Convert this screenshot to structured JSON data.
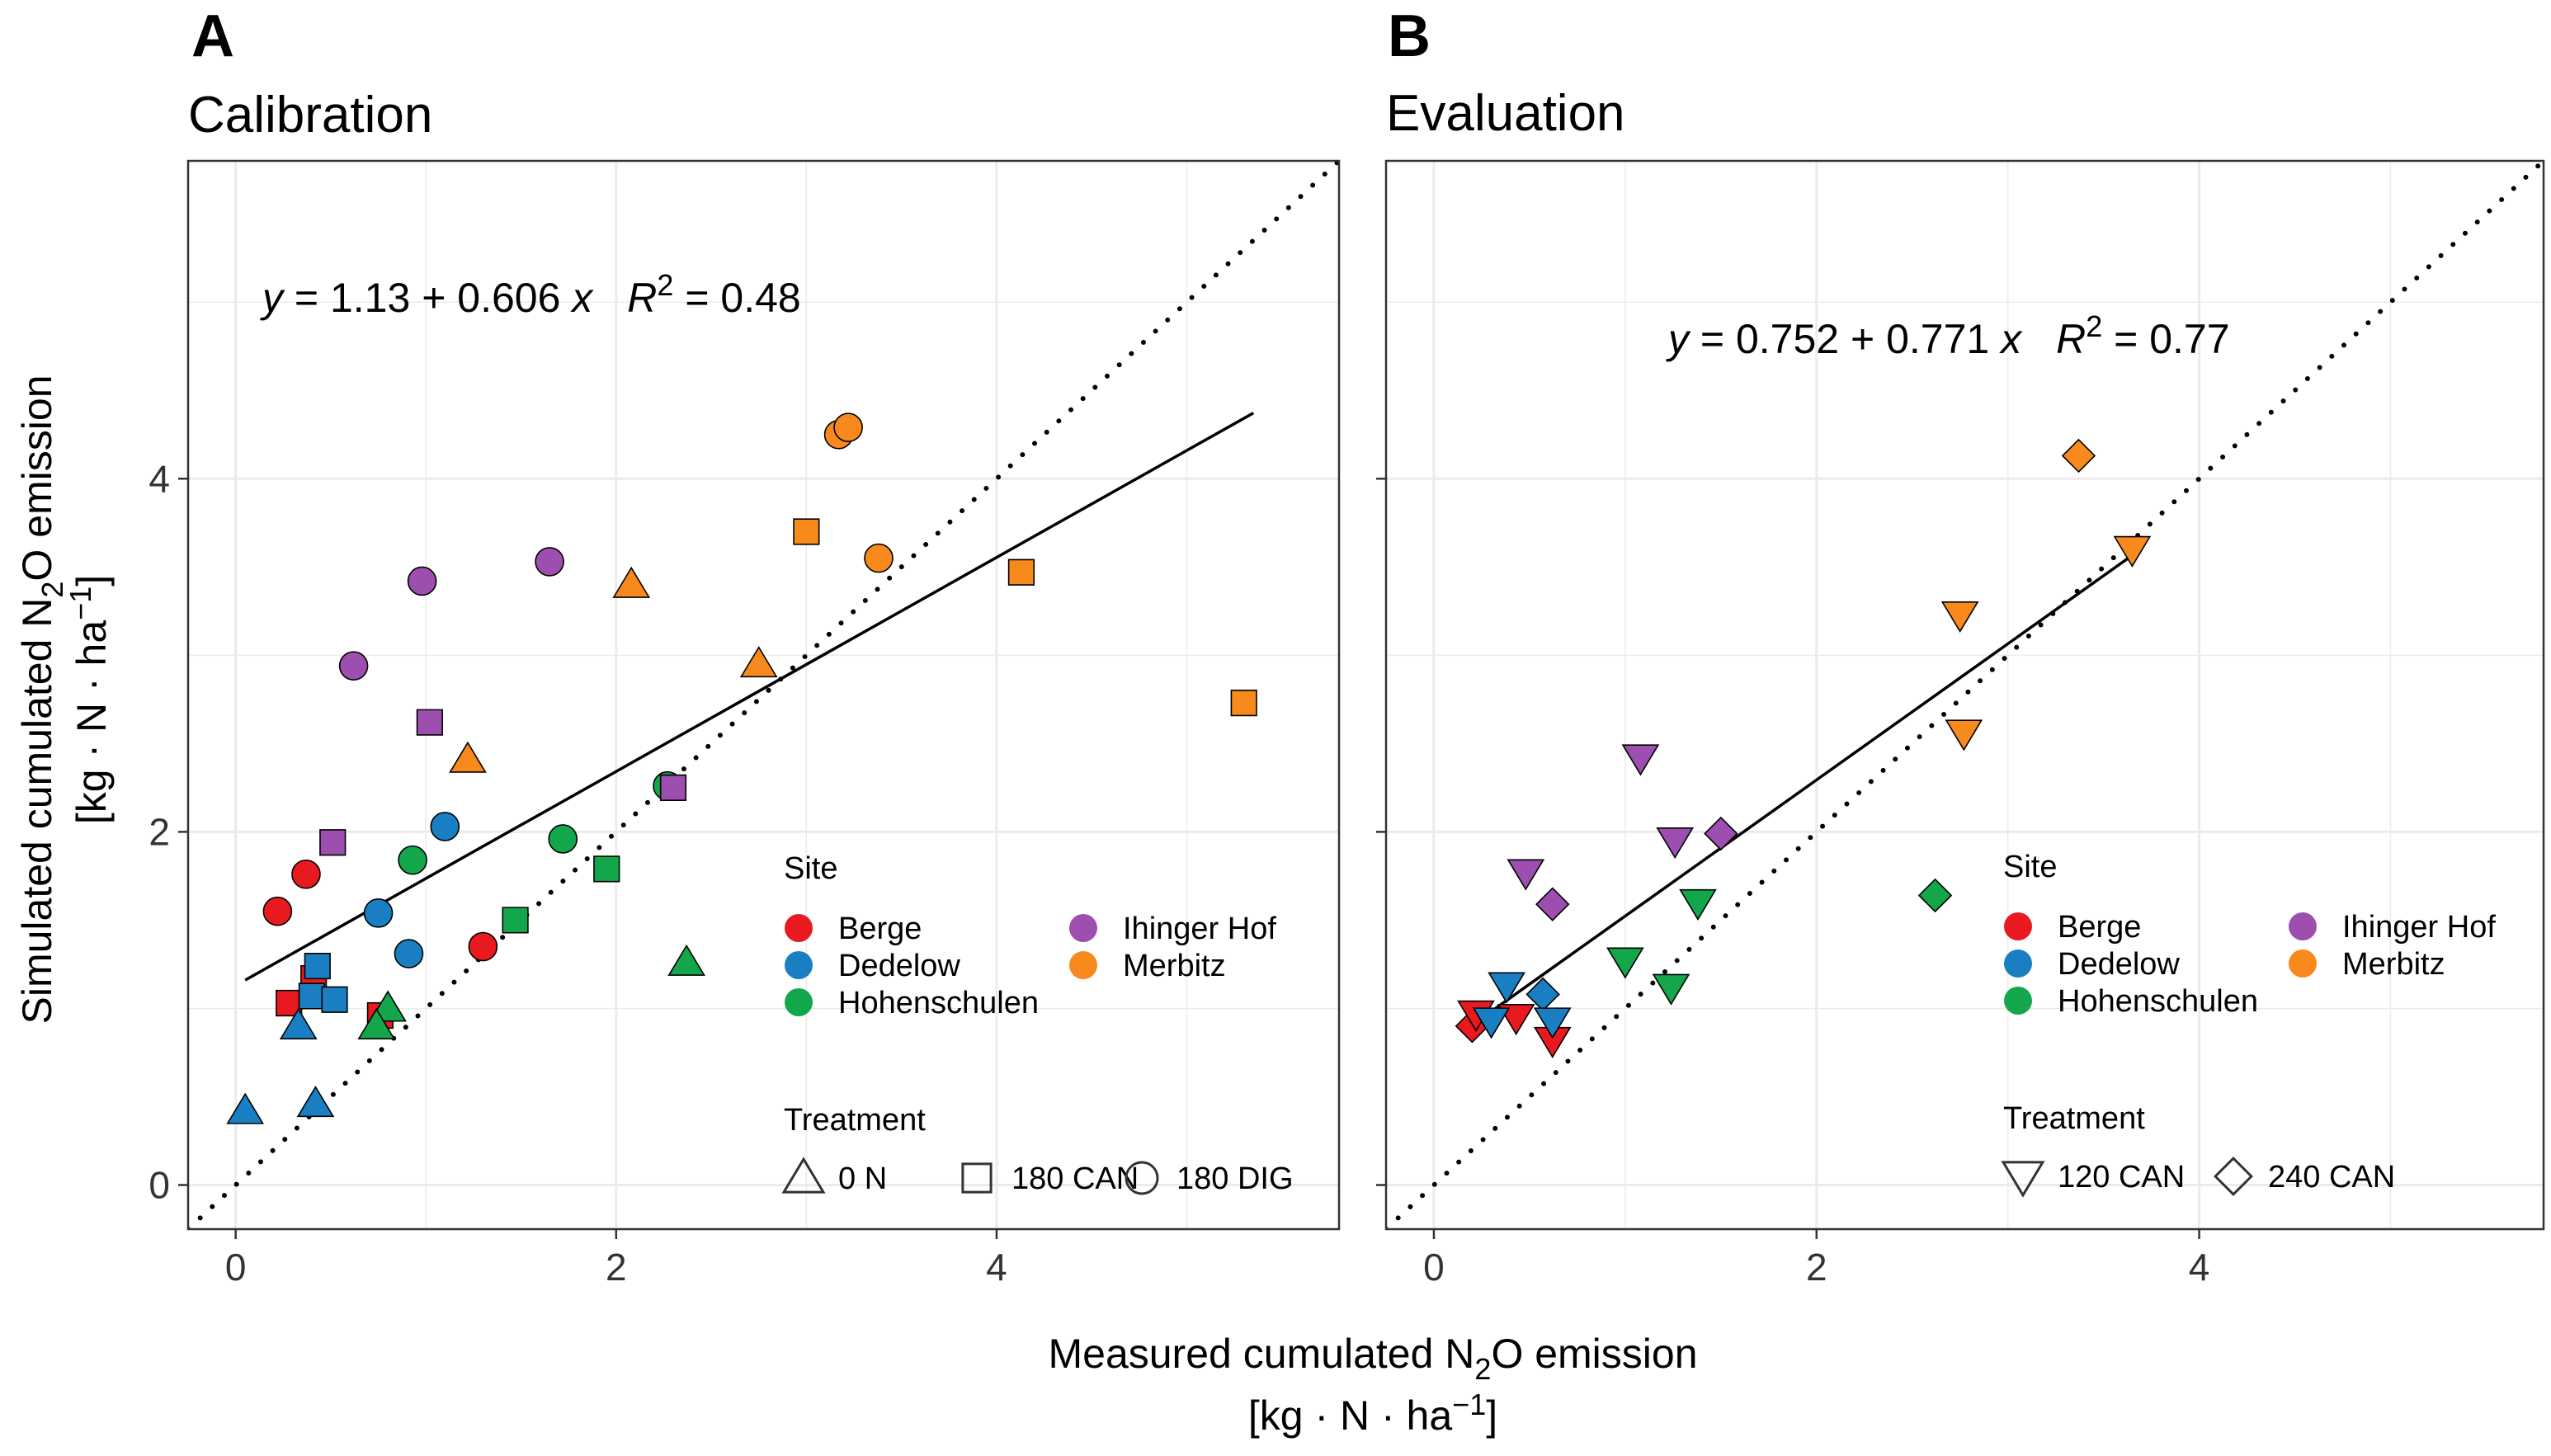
{
  "chart_data": [
    {
      "panel": "A",
      "title": "Calibration",
      "type": "scatter",
      "xlim": [
        -0.25,
        5.8
      ],
      "ylim": [
        -0.25,
        5.8
      ],
      "x_ticks": [
        0,
        2,
        4
      ],
      "y_ticks": [
        0,
        2,
        4
      ],
      "x_tick_labels": [
        "0",
        "2",
        "4"
      ],
      "y_tick_labels": [
        "0",
        "2",
        "4"
      ],
      "grid": true,
      "reference_line": "1:1 dotted",
      "regression": {
        "label_y": "y",
        "label_eq": "= 1.13 + 0.606",
        "label_x": "x",
        "label_r2_R": "R",
        "label_r2_sup": "2",
        "label_r2_val": "= 0.48",
        "intercept": 1.13,
        "slope": 0.606,
        "x_range": [
          0.05,
          5.35
        ]
      },
      "legend_site_title": "Site",
      "legend_treatment_title": "Treatment",
      "treatments": [
        {
          "shape": "triangle",
          "label": "0 N"
        },
        {
          "shape": "square",
          "label": "180 CAN"
        },
        {
          "shape": "circle",
          "label": "180 DIG"
        }
      ],
      "series": [
        {
          "site": "Berge",
          "points": [
            {
              "x": 0.22,
              "y": 1.55,
              "shape": "circle"
            },
            {
              "x": 0.37,
              "y": 1.76,
              "shape": "circle"
            },
            {
              "x": 1.3,
              "y": 1.35,
              "shape": "circle"
            },
            {
              "x": 0.28,
              "y": 1.03,
              "shape": "square"
            },
            {
              "x": 0.41,
              "y": 1.17,
              "shape": "square"
            },
            {
              "x": 0.76,
              "y": 0.96,
              "shape": "square"
            }
          ]
        },
        {
          "site": "Dedelow",
          "points": [
            {
              "x": 0.75,
              "y": 1.54,
              "shape": "circle"
            },
            {
              "x": 1.1,
              "y": 2.03,
              "shape": "circle"
            },
            {
              "x": 0.91,
              "y": 1.31,
              "shape": "circle"
            },
            {
              "x": 0.43,
              "y": 1.24,
              "shape": "square"
            },
            {
              "x": 0.4,
              "y": 1.07,
              "shape": "square"
            },
            {
              "x": 0.52,
              "y": 1.05,
              "shape": "square"
            },
            {
              "x": 0.05,
              "y": 0.42,
              "shape": "triangle"
            },
            {
              "x": 0.33,
              "y": 0.9,
              "shape": "triangle"
            },
            {
              "x": 0.42,
              "y": 0.46,
              "shape": "triangle"
            }
          ]
        },
        {
          "site": "Hohenschulen",
          "points": [
            {
              "x": 0.93,
              "y": 1.84,
              "shape": "circle"
            },
            {
              "x": 1.72,
              "y": 1.96,
              "shape": "circle"
            },
            {
              "x": 2.27,
              "y": 2.26,
              "shape": "circle"
            },
            {
              "x": 1.47,
              "y": 1.5,
              "shape": "square"
            },
            {
              "x": 1.95,
              "y": 1.79,
              "shape": "square"
            },
            {
              "x": 2.37,
              "y": 1.26,
              "shape": "triangle"
            },
            {
              "x": 0.8,
              "y": 1.0,
              "shape": "triangle"
            },
            {
              "x": 0.74,
              "y": 0.9,
              "shape": "triangle"
            }
          ]
        },
        {
          "site": "Ihinger Hof",
          "points": [
            {
              "x": 0.98,
              "y": 3.42,
              "shape": "circle"
            },
            {
              "x": 1.65,
              "y": 3.53,
              "shape": "circle"
            },
            {
              "x": 0.62,
              "y": 2.94,
              "shape": "circle"
            },
            {
              "x": 1.02,
              "y": 2.62,
              "shape": "square"
            },
            {
              "x": 0.51,
              "y": 1.94,
              "shape": "square"
            },
            {
              "x": 2.3,
              "y": 2.25,
              "shape": "square"
            }
          ]
        },
        {
          "site": "Merbitz",
          "points": [
            {
              "x": 3.17,
              "y": 4.25,
              "shape": "circle"
            },
            {
              "x": 3.22,
              "y": 4.29,
              "shape": "circle"
            },
            {
              "x": 3.38,
              "y": 3.55,
              "shape": "circle"
            },
            {
              "x": 3.0,
              "y": 3.7,
              "shape": "square"
            },
            {
              "x": 4.13,
              "y": 3.47,
              "shape": "square"
            },
            {
              "x": 5.3,
              "y": 2.73,
              "shape": "square"
            },
            {
              "x": 2.08,
              "y": 3.4,
              "shape": "triangle"
            },
            {
              "x": 1.22,
              "y": 2.41,
              "shape": "triangle"
            },
            {
              "x": 2.75,
              "y": 2.95,
              "shape": "triangle"
            }
          ]
        }
      ]
    },
    {
      "panel": "B",
      "title": "Evaluation",
      "type": "scatter",
      "xlim": [
        -0.25,
        5.8
      ],
      "ylim": [
        -0.25,
        5.8
      ],
      "x_ticks": [
        0,
        2,
        4
      ],
      "y_ticks": [
        0,
        2,
        4
      ],
      "x_tick_labels": [
        "0",
        "2",
        "4"
      ],
      "y_tick_labels": [
        "0",
        "2",
        "4"
      ],
      "grid": true,
      "reference_line": "1:1 dotted",
      "regression": {
        "label_y": "y",
        "label_eq": "= 0.752 + 0.771",
        "label_x": "x",
        "label_r2_R": "R",
        "label_r2_sup": "2",
        "label_r2_val": "= 0.77",
        "intercept": 0.752,
        "slope": 0.771,
        "x_range": [
          0.2,
          3.65
        ]
      },
      "legend_site_title": "Site",
      "legend_treatment_title": "Treatment",
      "treatments": [
        {
          "shape": "triangle-down",
          "label": "120 CAN"
        },
        {
          "shape": "diamond",
          "label": "240 CAN"
        }
      ],
      "series": [
        {
          "site": "Berge",
          "points": [
            {
              "x": 0.2,
              "y": 0.9,
              "shape": "diamond"
            },
            {
              "x": 0.22,
              "y": 0.97,
              "shape": "triangle-down"
            },
            {
              "x": 0.43,
              "y": 0.95,
              "shape": "triangle-down"
            },
            {
              "x": 0.62,
              "y": 0.82,
              "shape": "triangle-down"
            }
          ]
        },
        {
          "site": "Dedelow",
          "points": [
            {
              "x": 0.3,
              "y": 0.93,
              "shape": "triangle-down"
            },
            {
              "x": 0.38,
              "y": 1.13,
              "shape": "triangle-down"
            },
            {
              "x": 0.57,
              "y": 1.08,
              "shape": "diamond"
            },
            {
              "x": 0.62,
              "y": 0.93,
              "shape": "triangle-down"
            }
          ]
        },
        {
          "site": "Hohenschulen",
          "points": [
            {
              "x": 1.0,
              "y": 1.27,
              "shape": "triangle-down"
            },
            {
              "x": 1.24,
              "y": 1.12,
              "shape": "triangle-down"
            },
            {
              "x": 1.38,
              "y": 1.6,
              "shape": "triangle-down"
            },
            {
              "x": 2.62,
              "y": 1.64,
              "shape": "diamond"
            }
          ]
        },
        {
          "site": "Ihinger Hof",
          "points": [
            {
              "x": 0.48,
              "y": 1.77,
              "shape": "triangle-down"
            },
            {
              "x": 0.62,
              "y": 1.59,
              "shape": "diamond"
            },
            {
              "x": 1.08,
              "y": 2.42,
              "shape": "triangle-down"
            },
            {
              "x": 1.26,
              "y": 1.95,
              "shape": "triangle-down"
            },
            {
              "x": 1.5,
              "y": 1.99,
              "shape": "diamond"
            }
          ]
        },
        {
          "site": "Merbitz",
          "points": [
            {
              "x": 3.37,
              "y": 4.13,
              "shape": "diamond"
            },
            {
              "x": 3.65,
              "y": 3.6,
              "shape": "triangle-down"
            },
            {
              "x": 2.75,
              "y": 3.23,
              "shape": "triangle-down"
            },
            {
              "x": 2.77,
              "y": 2.56,
              "shape": "triangle-down"
            }
          ]
        }
      ]
    }
  ],
  "sites": [
    {
      "name": "Berge",
      "color": "#e8191f"
    },
    {
      "name": "Dedelow",
      "color": "#1a7fc2"
    },
    {
      "name": "Hohenschulen",
      "color": "#13a64a"
    },
    {
      "name": "Ihinger Hof",
      "color": "#9c4fae"
    },
    {
      "name": "Merbitz",
      "color": "#f7891d"
    }
  ],
  "x_axis_title": {
    "line1_pre": "Measured cumulated N",
    "line1_sub": "2",
    "line1_post": "O emission",
    "line2_pre": "[kg · N · ha",
    "line2_sup": "−1",
    "line2_post": "]"
  },
  "y_axis_title": {
    "line1_pre": "Simulated cumulated N",
    "line1_sub": "2",
    "line1_post": "O emission",
    "line2_pre": "[kg · N · ha",
    "line2_sup": "−1",
    "line2_post": "]"
  }
}
